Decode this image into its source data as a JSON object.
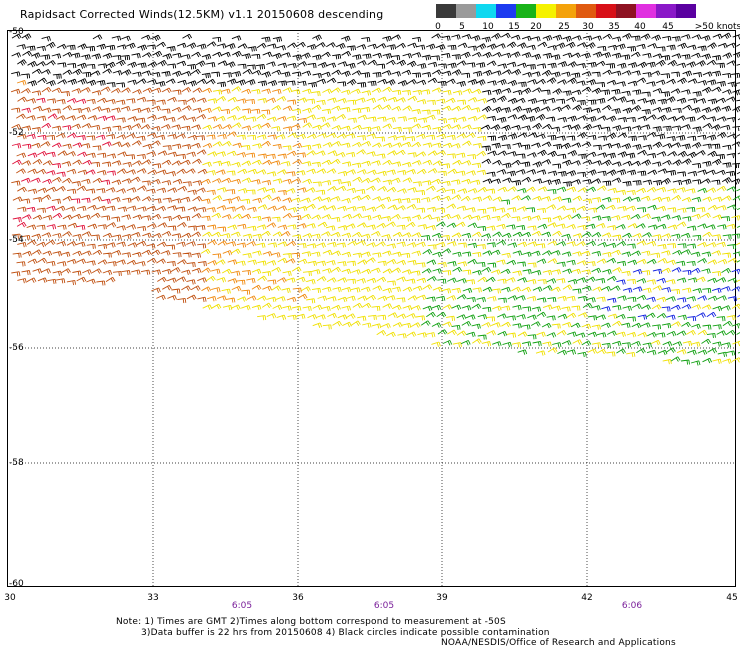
{
  "title": "Rapidsact Corrected Winds(12.5KM) v1.1 20150608 descending",
  "legend": {
    "labels": [
      "0",
      "5",
      "10",
      "15",
      "20",
      "25",
      "30",
      "35",
      "40",
      "45",
      ">50 knots"
    ],
    "colors": [
      "#3a3a3a",
      "#9a9a9a",
      "#0fd8f0",
      "#1d3bf0",
      "#19b319",
      "#f5f200",
      "#f4a20a",
      "#e05a10",
      "#d81018",
      "#8e1222",
      "#e030e0",
      "#8a18c8",
      "#5a00a0"
    ]
  },
  "axes": {
    "lat_labels": [
      "-50",
      "-52",
      "-54",
      "-56",
      "-58",
      "-60"
    ],
    "lon_labels": [
      "30",
      "33",
      "36",
      "39",
      "42",
      "45"
    ]
  },
  "times": [
    "6:05",
    "6:05",
    "6:06"
  ],
  "notes": {
    "line1": "Note: 1) Times are GMT 2)Times along bottom correspond to measurement at -50S",
    "line2": "3)Data buffer is 22 hrs from 20150608 4) Black circles indicate possible contamination",
    "credit": "NOAA/NESDIS/Office of Research and Applications"
  },
  "wind_color_ranges": {
    "black": "#000000",
    "yellow": "#f0e000",
    "orange": "#f08a10",
    "brown": "#c05010",
    "red": "#e0103a",
    "green": "#10a010",
    "blue": "#1020e0"
  }
}
